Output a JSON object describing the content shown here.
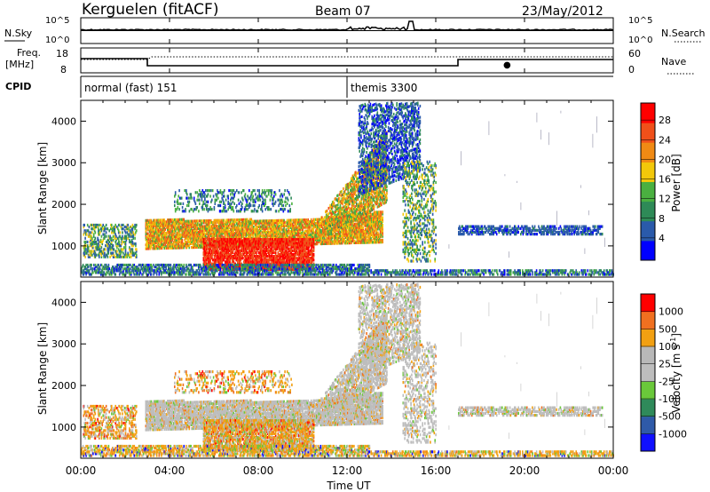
{
  "header": {
    "station": "Kerguelen (fitACF)",
    "beam": "Beam 07",
    "date": "23/May/2012"
  },
  "noise_panel": {
    "left_label": "N.Sky",
    "right_label": "N.Search",
    "left_ticks": [
      "10^5",
      "10^0"
    ],
    "right_ticks": [
      "10^5",
      "10^0"
    ]
  },
  "freq_panel": {
    "left_label_1": "Freq.",
    "left_label_2": "[MHz]",
    "right_label": "Nave",
    "left_ticks": [
      "18",
      "8"
    ],
    "right_ticks": [
      "60",
      "0"
    ]
  },
  "cpid_panel": {
    "label": "CPID",
    "modes": [
      {
        "name": "normal (fast) 151",
        "start_hour": 0
      },
      {
        "name": "themis 3300",
        "start_hour": 12
      }
    ]
  },
  "power_colorbar": {
    "label": "Power [dB]",
    "ticks": [
      "28",
      "24",
      "20",
      "16",
      "12",
      "8",
      "4"
    ]
  },
  "velocity_colorbar": {
    "label": "Velocity  [m s",
    "label_sup": "-1",
    "label_end": "]",
    "ticks": [
      "1000",
      "500",
      "100",
      "25",
      "-25",
      "-100",
      "-500",
      "-1000"
    ]
  },
  "chart_data": [
    {
      "type": "heatmap",
      "ylabel": "Slant Range [km]",
      "y_ticks": [
        "1000",
        "2000",
        "3000",
        "4000"
      ],
      "ylim": [
        250,
        4500
      ],
      "colorbar": "Power [dB]"
    },
    {
      "type": "heatmap",
      "ylabel": "Slant Range [km]",
      "y_ticks": [
        "1000",
        "2000",
        "3000",
        "4000"
      ],
      "ylim": [
        250,
        4500
      ],
      "colorbar": "Velocity [m s-1]"
    }
  ],
  "time_axis": {
    "xlabel": "Time UT",
    "ticks": [
      "00:00",
      "04:00",
      "08:00",
      "12:00",
      "16:00",
      "20:00",
      "00:00"
    ],
    "xlim": [
      0,
      24
    ]
  },
  "colors": {
    "power_scale": [
      "#0000ff",
      "#2a5aaa",
      "#2e8a57",
      "#4ab040",
      "#f2c80a",
      "#f08a14",
      "#f0501a",
      "#ff0000"
    ],
    "velocity_scale": [
      "#1010ff",
      "#2f5aa8",
      "#2f8a5a",
      "#6ac83a",
      "#bdbdbd",
      "#b8b8b8",
      "#f2a012",
      "#f07020",
      "#ff0000"
    ]
  }
}
